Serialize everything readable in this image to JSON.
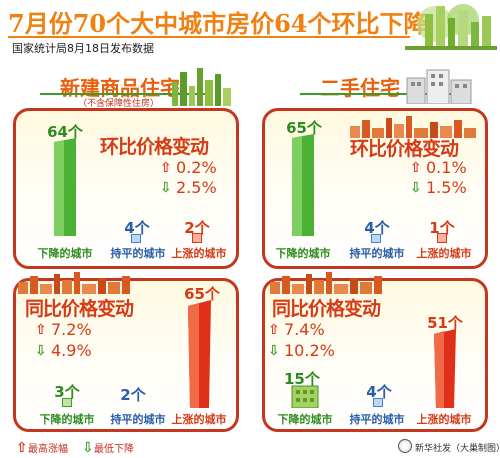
{
  "header": {
    "title": "7月份70个大中城市房价64个环比下降",
    "source": "国家统计局8月18日发布数据"
  },
  "new_housing": {
    "title": "新建商品住宅",
    "note": "（不含保障性住房）",
    "mom": {
      "heading": "环比价格变动",
      "max_up": "0.2%",
      "max_down": "2.5%",
      "down": {
        "count": "64个",
        "label": "下降的城市"
      },
      "flat": {
        "count": "4个",
        "label": "持平的城市"
      },
      "up": {
        "count": "2个",
        "label": "上涨的城市"
      }
    },
    "yoy": {
      "heading": "同比价格变动",
      "max_up": "7.2%",
      "max_down": "4.9%",
      "down": {
        "count": "3个",
        "label": "下降的城市"
      },
      "flat": {
        "count": "2个",
        "label": "持平的城市"
      },
      "up": {
        "count": "65个",
        "label": "上涨的城市"
      }
    }
  },
  "second_hand": {
    "title": "二手住宅",
    "mom": {
      "heading": "环比价格变动",
      "max_up": "0.1%",
      "max_down": "1.5%",
      "down": {
        "count": "65个",
        "label": "下降的城市"
      },
      "flat": {
        "count": "4个",
        "label": "持平的城市"
      },
      "up": {
        "count": "1个",
        "label": "上涨的城市"
      }
    },
    "yoy": {
      "heading": "同比价格变动",
      "max_up": "7.4%",
      "max_down": "10.2%",
      "down": {
        "count": "15个",
        "label": "下降的城市"
      },
      "flat": {
        "count": "4个",
        "label": "持平的城市"
      },
      "up": {
        "count": "51个",
        "label": "上涨的城市"
      }
    }
  },
  "legend": {
    "up_label": "最高涨幅",
    "down_label": "最低下降"
  },
  "credit": "新华社发（大巢制图）",
  "colors": {
    "accent_orange": "#f08010",
    "panel_border": "#c4361e",
    "up_red": "#e0301a",
    "down_green": "#3a9c2a",
    "flat_blue": "#2a5da8"
  }
}
